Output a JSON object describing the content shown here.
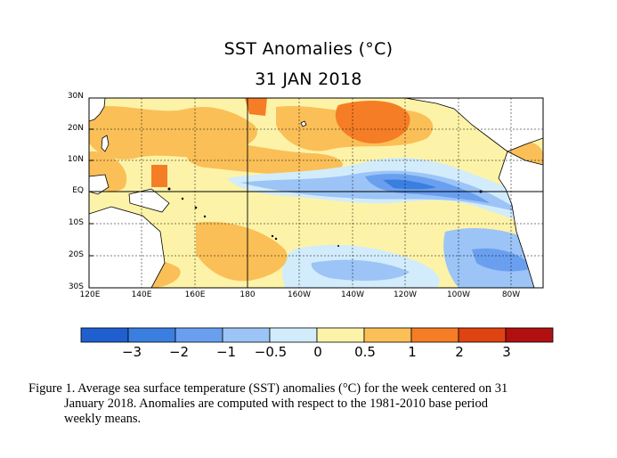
{
  "header": {
    "title": "SST Anomalies (°C)",
    "date": "31 JAN 2018"
  },
  "map": {
    "latitudes": [
      "30N",
      "20N",
      "10N",
      "EQ",
      "10S",
      "20S",
      "30S"
    ],
    "longitudes": [
      "120E",
      "140E",
      "160E",
      "180",
      "160W",
      "140W",
      "120W",
      "100W",
      "80W"
    ],
    "colors": {
      "land": "#ffffff",
      "coast": "#000000",
      "grid": "#000000"
    }
  },
  "colorbar": {
    "labels": [
      "−3",
      "−2",
      "−1",
      "−0.5",
      "0",
      "0.5",
      "1",
      "2",
      "3"
    ],
    "bins": [
      {
        "color": "#1f5fd0",
        "range": "< -3"
      },
      {
        "color": "#3a7fe0",
        "range": "-3 to -2"
      },
      {
        "color": "#6a9ff0",
        "range": "-2 to -1"
      },
      {
        "color": "#9cc4f6",
        "range": "-1 to -0.5"
      },
      {
        "color": "#d2ecfb",
        "range": "-0.5 to 0"
      },
      {
        "color": "#fdf3a8",
        "range": "0 to 0.5"
      },
      {
        "color": "#fbbf58",
        "range": "0.5 to 1"
      },
      {
        "color": "#f57d25",
        "range": "1 to 2"
      },
      {
        "color": "#e04312",
        "range": "2 to 3"
      },
      {
        "color": "#b01010",
        "range": "> 3"
      }
    ]
  },
  "caption": {
    "line1": "Figure 1. Average sea surface temperature (SST) anomalies (°C) for the week centered on 31",
    "line2": "January 2018.  Anomalies are computed with respect to the 1981-2010 base period",
    "line3": "weekly means."
  }
}
